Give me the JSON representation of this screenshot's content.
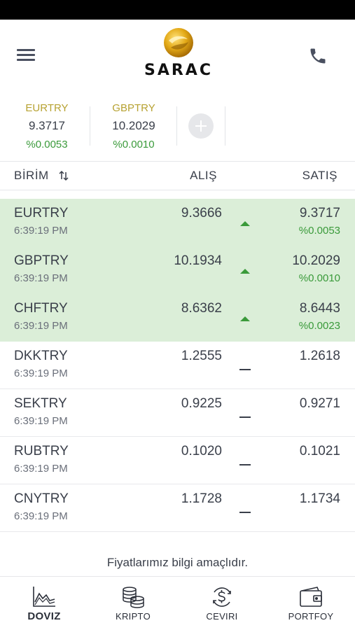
{
  "header": {
    "brand": "SARAC",
    "menu_icon": "hamburger-menu-icon",
    "phone_icon": "phone-icon",
    "brand_color": "#d9a91a"
  },
  "favorites": [
    {
      "code": "EURTRY",
      "price": "9.3717",
      "change": "%0.0053"
    },
    {
      "code": "GBPTRY",
      "price": "10.2029",
      "change": "%0.0010"
    }
  ],
  "table": {
    "col_unit": "BİRİM",
    "col_buy": "ALIŞ",
    "col_sell": "SATIŞ",
    "rows": [
      {
        "code": "EURTRY",
        "time": "6:39:19 PM",
        "buy": "9.3666",
        "sell": "9.3717",
        "change": "%0.0053",
        "trend": "up"
      },
      {
        "code": "GBPTRY",
        "time": "6:39:19 PM",
        "buy": "10.1934",
        "sell": "10.2029",
        "change": "%0.0010",
        "trend": "up"
      },
      {
        "code": "CHFTRY",
        "time": "6:39:19 PM",
        "buy": "8.6362",
        "sell": "8.6443",
        "change": "%0.0023",
        "trend": "up"
      },
      {
        "code": "DKKTRY",
        "time": "6:39:19 PM",
        "buy": "1.2555",
        "sell": "1.2618",
        "change": "",
        "trend": "flat"
      },
      {
        "code": "SEKTRY",
        "time": "6:39:19 PM",
        "buy": "0.9225",
        "sell": "0.9271",
        "change": "",
        "trend": "flat"
      },
      {
        "code": "RUBTRY",
        "time": "6:39:19 PM",
        "buy": "0.1020",
        "sell": "0.1021",
        "change": "",
        "trend": "flat"
      },
      {
        "code": "CNYTRY",
        "time": "6:39:19 PM",
        "buy": "1.1728",
        "sell": "1.1734",
        "change": "",
        "trend": "flat"
      }
    ]
  },
  "disclaimer": "Fiyatlarımız bilgi amaçlıdır.",
  "nav": {
    "items": [
      {
        "label": "DOVIZ",
        "icon": "line-chart-icon",
        "active": true
      },
      {
        "label": "KRIPTO",
        "icon": "coin-stack-icon",
        "active": false
      },
      {
        "label": "CEVIRI",
        "icon": "currency-exchange-icon",
        "active": false
      },
      {
        "label": "PORTFOY",
        "icon": "wallet-icon",
        "active": false
      }
    ]
  },
  "colors": {
    "up_row_bg": "#dbeed8",
    "positive": "#3a9a3a",
    "favorite_code": "#b7a232"
  }
}
